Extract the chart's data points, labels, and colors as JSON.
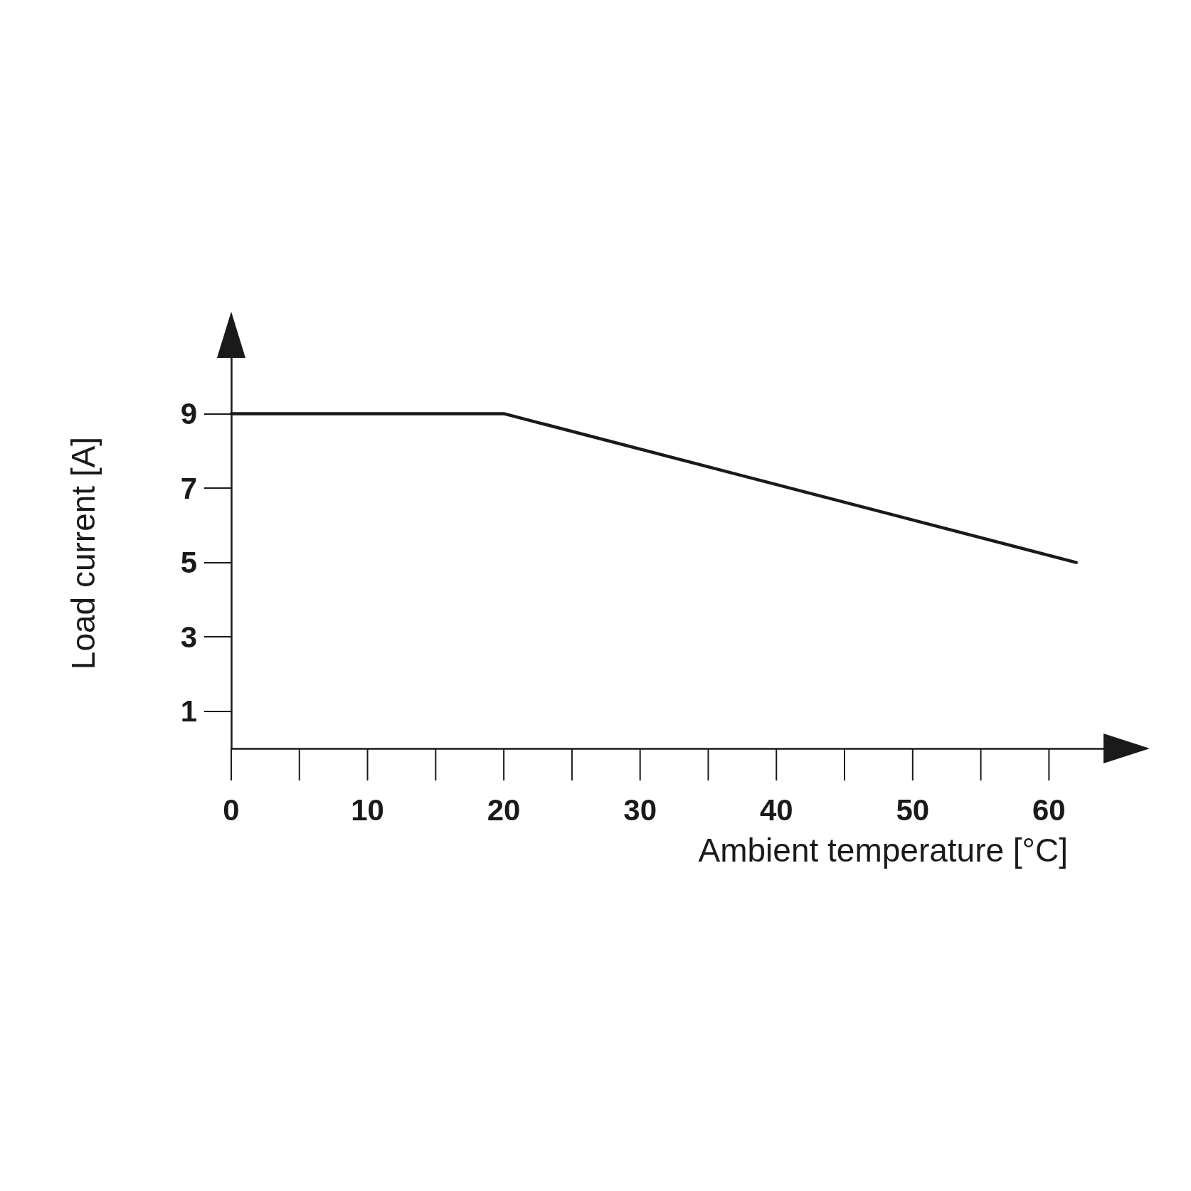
{
  "chart_data": {
    "type": "line",
    "xlabel": "Ambient temperature [°C]",
    "ylabel": "Load current [A]",
    "x": [
      0,
      20,
      62
    ],
    "values": [
      9,
      9,
      5
    ],
    "color": "#1a1a1a",
    "marker": "none",
    "line_style": "solid",
    "grid": false,
    "xlim": [
      0,
      64
    ],
    "xticks": [
      0,
      10,
      20,
      30,
      40,
      50,
      60
    ],
    "ylim": [
      0,
      10.5
    ],
    "yticks": [
      1,
      3,
      5,
      7,
      9
    ]
  }
}
